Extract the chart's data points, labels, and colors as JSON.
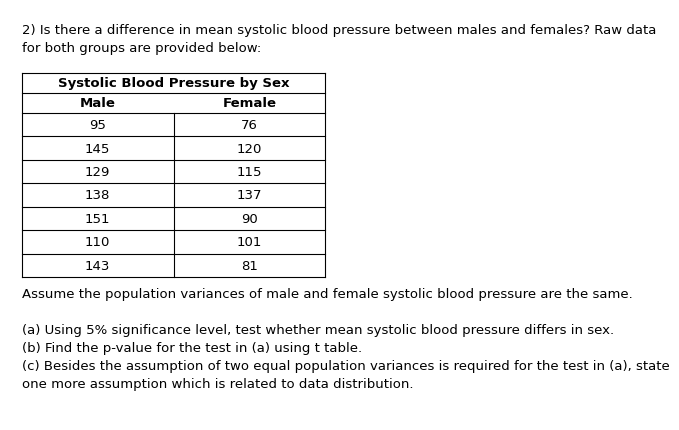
{
  "question_text_line1": "2) Is there a difference in mean systolic blood pressure between males and females? Raw data",
  "question_text_line2": "for both groups are provided below:",
  "table_title": "Systolic Blood Pressure by Sex",
  "col_headers": [
    "Male",
    "Female"
  ],
  "male_data": [
    95,
    145,
    129,
    138,
    151,
    110,
    143
  ],
  "female_data": [
    76,
    120,
    115,
    137,
    90,
    101,
    81
  ],
  "assumption_text": "Assume the population variances of male and female systolic blood pressure are the same.",
  "part_a": "(a) Using 5% significance level, test whether mean systolic blood pressure differs in sex.",
  "part_b": "(b) Find the p-value for the test in (a) using t table.",
  "part_c_line1": "(c) Besides the assumption of two equal population variances is required for the test in (a), state",
  "part_c_line2": "one more assumption which is related to data distribution.",
  "bg_color": "#ffffff",
  "text_color": "#000000",
  "font_size": 9.5,
  "table_font_size": 9.5
}
